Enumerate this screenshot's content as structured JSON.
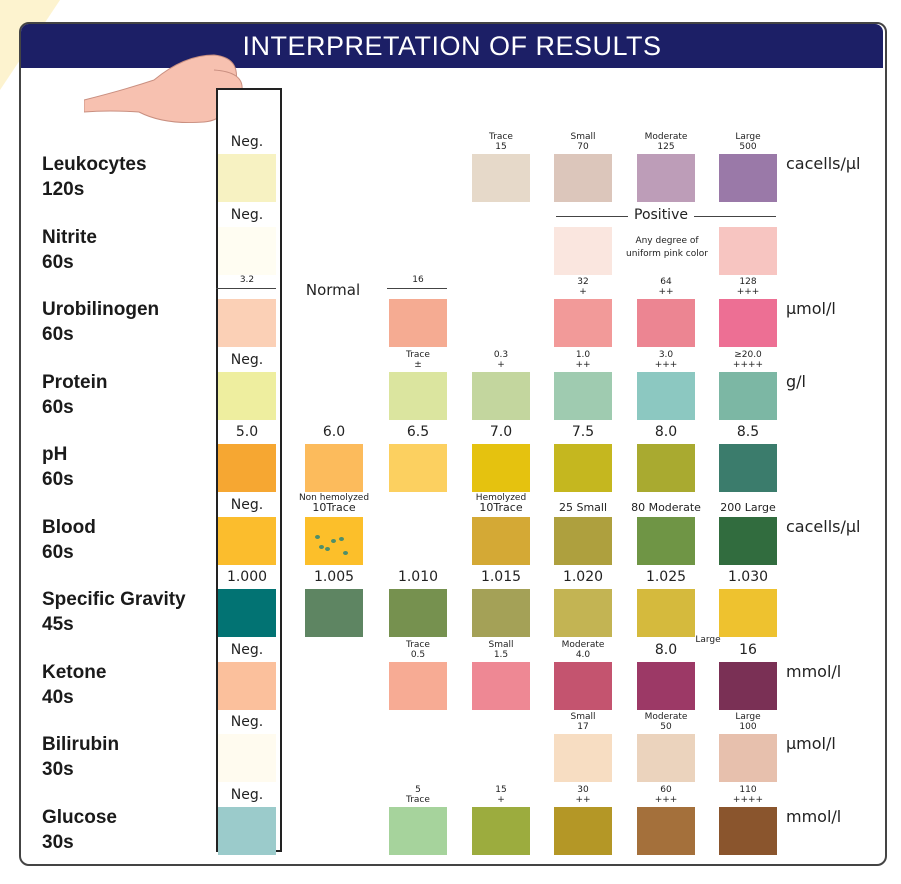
{
  "title": "INTERPRETATION OF RESULTS",
  "tests": [
    {
      "name": "Leukocytes",
      "time": "120s",
      "unit": "cacells/μl",
      "pads": [
        {
          "col": 0,
          "color": "#f7f2c2",
          "label": "Neg."
        },
        {
          "col": 3,
          "color": "#e6d9c9",
          "label": "Trace\n15"
        },
        {
          "col": 4,
          "color": "#dcc6bb",
          "label": "Small\n70"
        },
        {
          "col": 5,
          "color": "#bd9db8",
          "label": "Moderate\n125"
        },
        {
          "col": 6,
          "color": "#9a79a8",
          "label": "Large\n500"
        }
      ]
    },
    {
      "name": "Nitrite",
      "time": "60s",
      "unit": "",
      "pads": [
        {
          "col": 0,
          "color": "#fffdf2",
          "label": "Neg."
        },
        {
          "col": 4,
          "color": "#fae6df",
          "label": ""
        },
        {
          "col": 6,
          "color": "#f7c5c1",
          "label": ""
        }
      ],
      "note": {
        "title": "Positive",
        "text": "Any degree of\nuniform pink color"
      }
    },
    {
      "name": "Urobilinogen",
      "time": "60s",
      "unit": "μmol/l",
      "pads": [
        {
          "col": 0,
          "color": "#fbd0b6",
          "label": "3.2"
        },
        {
          "col": 2,
          "color": "#f5ab92",
          "label": "16"
        },
        {
          "col": 4,
          "color": "#f29a99",
          "label": "32\n+"
        },
        {
          "col": 5,
          "color": "#ec8592",
          "label": "64\n++"
        },
        {
          "col": 6,
          "color": "#ed6f94",
          "label": "128\n+++"
        }
      ],
      "normal": "Normal"
    },
    {
      "name": "Protein",
      "time": "60s",
      "unit": "g/l",
      "pads": [
        {
          "col": 0,
          "color": "#eeee9f",
          "label": "Neg."
        },
        {
          "col": 2,
          "color": "#dbe59f",
          "label": "Trace\n±"
        },
        {
          "col": 3,
          "color": "#c3d69e",
          "label": "0.3\n+"
        },
        {
          "col": 4,
          "color": "#9fcbb0",
          "label": "1.0\n++"
        },
        {
          "col": 5,
          "color": "#8cc8c1",
          "label": "3.0\n+++"
        },
        {
          "col": 6,
          "color": "#7cb7a4",
          "label": "≥20.0\n++++"
        }
      ]
    },
    {
      "name": "pH",
      "time": "60s",
      "unit": "",
      "pads": [
        {
          "col": 0,
          "color": "#f6a732",
          "label": "5.0"
        },
        {
          "col": 1,
          "color": "#fcbb5c",
          "label": "6.0"
        },
        {
          "col": 2,
          "color": "#fcd060",
          "label": "6.5"
        },
        {
          "col": 3,
          "color": "#e5c20f",
          "label": "7.0"
        },
        {
          "col": 4,
          "color": "#c5b71f",
          "label": "7.5"
        },
        {
          "col": 5,
          "color": "#a9aa30",
          "label": "8.0"
        },
        {
          "col": 6,
          "color": "#3b7c6c",
          "label": "8.5"
        }
      ]
    },
    {
      "name": "Blood",
      "time": "60s",
      "unit": "cacells/μl",
      "pads": [
        {
          "col": 0,
          "color": "#fbbd2d",
          "label": "Neg."
        },
        {
          "col": 1,
          "color": "#fcbf2a",
          "label": "Non hemolyzed\n10Trace"
        },
        {
          "col": 3,
          "color": "#d4a935",
          "label": "Hemolyzed\n10Trace"
        },
        {
          "col": 4,
          "color": "#aea03e",
          "label": "25 Small"
        },
        {
          "col": 5,
          "color": "#6f9545",
          "label": "80 Moderate"
        },
        {
          "col": 6,
          "color": "#316c3e",
          "label": "200 Large"
        }
      ]
    },
    {
      "name": "Specific Gravity",
      "time": "45s",
      "unit": "",
      "pads": [
        {
          "col": 0,
          "color": "#027373",
          "label": "1.000"
        },
        {
          "col": 1,
          "color": "#5e8562",
          "label": "1.005"
        },
        {
          "col": 2,
          "color": "#76914f",
          "label": "1.010"
        },
        {
          "col": 3,
          "color": "#a4a157",
          "label": "1.015"
        },
        {
          "col": 4,
          "color": "#c3b453",
          "label": "1.020"
        },
        {
          "col": 5,
          "color": "#d5ba3d",
          "label": "1.025"
        },
        {
          "col": 6,
          "color": "#eec22f",
          "label": "1.030"
        }
      ]
    },
    {
      "name": "Ketone",
      "time": "40s",
      "unit": "mmol/l",
      "pads": [
        {
          "col": 0,
          "color": "#fbc09c",
          "label": "Neg."
        },
        {
          "col": 2,
          "color": "#f7ab94",
          "label": "Trace\n0.5"
        },
        {
          "col": 3,
          "color": "#ee8894",
          "label": "Small\n1.5"
        },
        {
          "col": 4,
          "color": "#c4546f",
          "label": "Moderate\n4.0"
        },
        {
          "col": 5,
          "color": "#9c3966",
          "label": "8.0"
        },
        {
          "col": 6,
          "color": "#7a3055",
          "label": "16"
        }
      ],
      "extra": "Large"
    },
    {
      "name": "Bilirubin",
      "time": "30s",
      "unit": "μmol/l",
      "pads": [
        {
          "col": 0,
          "color": "#fffbef",
          "label": "Neg."
        },
        {
          "col": 4,
          "color": "#f7ddc2",
          "label": "Small\n17"
        },
        {
          "col": 5,
          "color": "#ebd3bd",
          "label": "Moderate\n50"
        },
        {
          "col": 6,
          "color": "#e7c0ad",
          "label": "Large\n100"
        }
      ]
    },
    {
      "name": "Glucose",
      "time": "30s",
      "unit": "mmol/l",
      "pads": [
        {
          "col": 0,
          "color": "#9bcbcb",
          "label": "Neg."
        },
        {
          "col": 2,
          "color": "#a6d39c",
          "label": "5\nTrace"
        },
        {
          "col": 3,
          "color": "#9cac3e",
          "label": "15\n+"
        },
        {
          "col": 4,
          "color": "#b49726",
          "label": "30\n++"
        },
        {
          "col": 5,
          "color": "#a4703b",
          "label": "60\n+++"
        },
        {
          "col": 6,
          "color": "#8a552d",
          "label": "110\n++++"
        }
      ]
    }
  ]
}
